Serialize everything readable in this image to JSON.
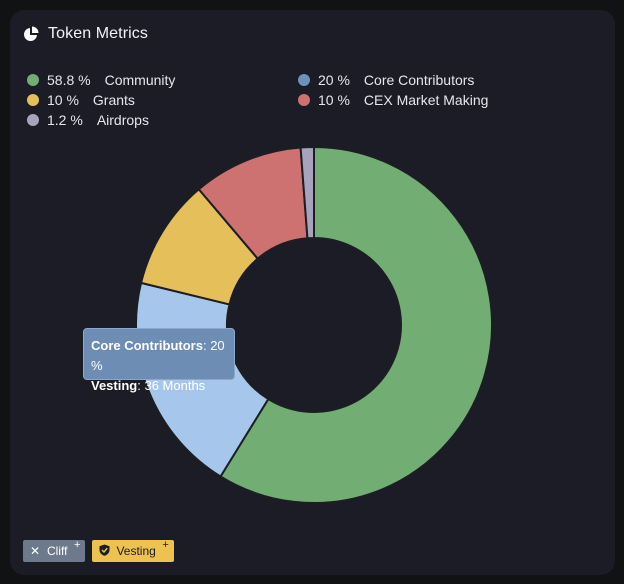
{
  "header": {
    "title": "Token Metrics",
    "icon": "pie-chart-icon"
  },
  "chart_data": {
    "type": "pie",
    "variant": "donut",
    "title": "Token Metrics",
    "slices": [
      {
        "name": "Community",
        "value": 58.8,
        "label": "58.8 %",
        "color": "#72ae74"
      },
      {
        "name": "Core Contributors",
        "value": 20,
        "label": "20 %",
        "color": "#a6c7eb",
        "legend_color": "#6e91ba"
      },
      {
        "name": "Grants",
        "value": 10,
        "label": "10 %",
        "color": "#e4bf5a"
      },
      {
        "name": "CEX Market Making",
        "value": 10,
        "label": "10 %",
        "color": "#cd7171"
      },
      {
        "name": "Airdrops",
        "value": 1.2,
        "label": "1.2 %",
        "color": "#a8a3bd"
      }
    ],
    "legend_order": [
      0,
      1,
      2,
      3,
      4
    ],
    "legend_placement": "top"
  },
  "tooltip": {
    "series_label": "Core Contributors",
    "series_value": "20 %",
    "vesting_label": "Vesting",
    "vesting_value": "36 Months"
  },
  "chips": [
    {
      "label": "Cliff",
      "icon": "close-icon",
      "plus": "+",
      "color": "#6c7a8c"
    },
    {
      "label": "Vesting",
      "icon": "shield-check-icon",
      "plus": "+",
      "color": "#eec24e"
    }
  ]
}
